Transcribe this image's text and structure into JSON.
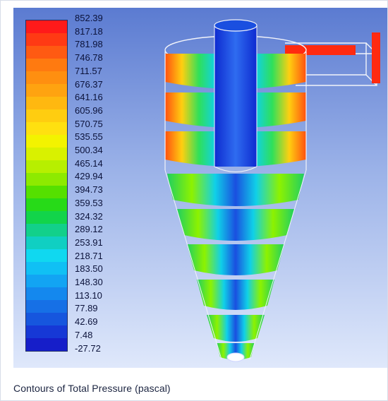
{
  "legend": {
    "levels": [
      "852.39",
      "817.18",
      "781.98",
      "746.78",
      "711.57",
      "676.37",
      "641.16",
      "605.96",
      "570.75",
      "535.55",
      "500.34",
      "465.14",
      "429.94",
      "394.73",
      "359.53",
      "324.32",
      "289.12",
      "253.91",
      "218.71",
      "183.50",
      "148.30",
      "113.10",
      "77.89",
      "42.69",
      "7.48",
      "-27.72"
    ],
    "colors": [
      "#ff1a1a",
      "#ff3a14",
      "#ff5a12",
      "#ff7a10",
      "#ff8f10",
      "#ffa310",
      "#ffb810",
      "#ffcd10",
      "#ffe010",
      "#f3f300",
      "#d9f100",
      "#b7ef00",
      "#8dea00",
      "#55e000",
      "#27da18",
      "#12d44a",
      "#12d08a",
      "#10cfc2",
      "#10d8f0",
      "#10c0f4",
      "#12a4f3",
      "#1488ee",
      "#1670e6",
      "#1656de",
      "#1638d6",
      "#161ec9"
    ]
  },
  "caption": "Contours of Total Pressure (pascal)",
  "model": {
    "description_colors": {
      "outer_high": "#ff3010",
      "mid": "#ffe000",
      "low": "#20d060",
      "core": "#1a4fe0"
    }
  }
}
